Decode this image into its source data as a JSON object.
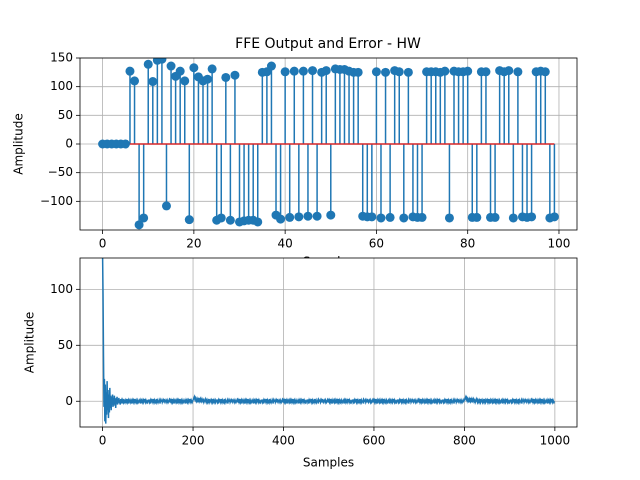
{
  "chart_data": [
    {
      "type": "stem",
      "title": "FFE Output and Error - HW",
      "xlabel": "Samples",
      "ylabel": "Amplitude",
      "color": "#1f77b4",
      "baseline_color": "#d62728",
      "grid": true,
      "xlim": [
        -4.95,
        103.95
      ],
      "ylim": [
        -150,
        150
      ],
      "xticks": [
        0,
        20,
        40,
        60,
        80,
        100
      ],
      "yticks": [
        {
          "value": -100,
          "label": "−100"
        },
        {
          "value": -50,
          "label": "−50"
        },
        0,
        50,
        100,
        150
      ],
      "values": [
        0,
        0,
        0,
        0,
        0,
        0,
        127,
        110,
        -141,
        -129,
        139,
        109,
        146,
        148,
        -108,
        136,
        118,
        127,
        110,
        -132,
        133,
        117,
        110,
        113,
        131,
        -133,
        -129,
        116,
        -133,
        120,
        -136,
        -134,
        -133,
        -133,
        -136,
        125,
        126,
        136,
        -124,
        -131,
        126,
        -128,
        127,
        -127,
        127,
        -126,
        128,
        -126,
        125,
        128,
        -124,
        131,
        130,
        130,
        127,
        125,
        125,
        -126,
        -127,
        -127,
        126,
        -129,
        125,
        -128,
        128,
        126,
        -129,
        125,
        -127,
        -128,
        -128,
        126,
        126,
        126,
        125,
        127,
        -129,
        127,
        126,
        126,
        127,
        -128,
        -128,
        126,
        126,
        -128,
        -128,
        128,
        126,
        128,
        -129,
        126,
        -127,
        -128,
        -127,
        126,
        127,
        126,
        -129,
        -127
      ]
    },
    {
      "type": "line",
      "xlabel": "Samples",
      "ylabel": "Amplitude",
      "color": "#1f77b4",
      "grid": true,
      "xlim": [
        -49.95,
        1048.95
      ],
      "ylim": [
        -23,
        128
      ],
      "xticks": [
        0,
        200,
        400,
        600,
        800,
        1000
      ],
      "yticks": [
        0,
        50,
        100
      ],
      "values": [
        130,
        95,
        40,
        -5,
        20,
        -18,
        15,
        -20,
        8,
        -12,
        18,
        -8,
        10,
        -15,
        6,
        -10,
        12,
        -6,
        5,
        -8,
        4,
        -3,
        6,
        -5,
        3,
        -4,
        5,
        -2,
        2,
        -6,
        3,
        -1,
        4,
        -3,
        2,
        -1,
        3,
        -2,
        1,
        -3,
        2,
        0,
        1,
        -2,
        1,
        0,
        -1,
        2,
        0,
        -1,
        0,
        1,
        -1,
        0,
        2,
        -1,
        0,
        1,
        -2,
        0,
        1,
        0,
        -1,
        1,
        0,
        -2,
        1,
        0,
        1,
        -1,
        0,
        2,
        -1,
        0,
        1,
        -1,
        0,
        -1,
        1,
        0,
        -1,
        0,
        1,
        0,
        -2,
        1,
        0,
        1,
        -1,
        0,
        1,
        -1,
        0,
        2,
        0,
        -1,
        1,
        0,
        -1,
        0,
        -1,
        0,
        1,
        1,
        -1,
        0,
        -2,
        1,
        0,
        1,
        0,
        -1,
        2,
        0,
        -1,
        1,
        0,
        -1,
        0,
        2,
        -1,
        0,
        1,
        -1,
        0,
        0,
        1,
        -2,
        1,
        0,
        0,
        1,
        -1,
        0,
        1,
        -1,
        2,
        0,
        -1,
        0,
        1,
        0,
        -1,
        1,
        0,
        -1,
        0,
        1,
        -1,
        1,
        0,
        1,
        -1,
        0,
        2,
        -1,
        0,
        1,
        -2,
        0,
        1,
        0,
        -1,
        1,
        0,
        -2,
        1,
        0,
        1,
        -1,
        0,
        2,
        -1,
        0,
        1,
        -1,
        0,
        -1,
        1,
        0,
        -1,
        0,
        1,
        0,
        -2,
        1,
        0,
        1,
        -1,
        0,
        1,
        -1,
        0,
        2,
        0,
        -1,
        1,
        0,
        -1,
        0,
        1,
        2,
        3,
        4,
        2,
        3,
        1,
        2,
        0,
        1,
        -1,
        2,
        1,
        3,
        0,
        1,
        2,
        -1,
        1,
        0,
        2,
        1,
        0,
        1,
        -1,
        0,
        1,
        2,
        0,
        -1,
        1,
        0,
        -1,
        1,
        0,
        2,
        -1,
        0,
        1,
        0,
        -1,
        1,
        0,
        -1,
        2,
        0,
        1,
        -1,
        0,
        1,
        -1,
        0,
        1,
        1,
        -1,
        0,
        -2,
        1,
        0,
        1,
        0,
        -1,
        2,
        0,
        -1,
        1,
        0,
        -1,
        0,
        2,
        -1,
        0,
        1,
        -1,
        0,
        0,
        1,
        -2,
        1,
        0,
        0,
        1,
        -1,
        0,
        1,
        -1,
        2,
        0,
        -1,
        0,
        1,
        0,
        -1,
        1,
        0,
        -1,
        0,
        1,
        -1,
        1,
        0,
        1,
        -1,
        0,
        2,
        -1,
        0,
        1,
        -2,
        0,
        1,
        0,
        -1,
        1,
        0,
        -2,
        1,
        0,
        1,
        -1,
        0,
        2,
        -1,
        0,
        1,
        -1,
        0,
        -1,
        1,
        0,
        -1,
        0,
        1,
        0,
        -2,
        1,
        0,
        1,
        -1,
        0,
        1,
        -1,
        0,
        2,
        0,
        -1,
        1,
        0,
        -1,
        0,
        -1,
        0,
        1,
        1,
        -1,
        0,
        -2,
        1,
        0,
        1,
        0,
        -1,
        2,
        0,
        -1,
        1,
        0,
        -1,
        0,
        2,
        -1,
        0,
        1,
        -1,
        0,
        0,
        1,
        -2,
        1,
        0,
        0,
        1,
        -1,
        0,
        1,
        -1,
        2,
        0,
        -1,
        0,
        1,
        0,
        -1,
        1,
        0,
        -1,
        0,
        1,
        -1,
        1,
        0,
        1,
        -1,
        0,
        2,
        -1,
        0,
        1,
        -2,
        0,
        1,
        0,
        -1,
        1,
        0,
        -2,
        1,
        0,
        1,
        -1,
        0,
        2,
        -1,
        0,
        1,
        -1,
        0,
        -1,
        1,
        0,
        -1,
        0,
        1,
        0,
        -2,
        1,
        0,
        1,
        -1,
        0,
        1,
        -1,
        0,
        2,
        0,
        -1,
        1,
        0,
        -1,
        0,
        -1,
        0,
        1,
        1,
        -1,
        0,
        -2,
        1,
        0,
        1,
        0,
        -1,
        2,
        0,
        -1,
        1,
        0,
        -1,
        0,
        2,
        -1,
        0,
        1,
        -1,
        0,
        0,
        1,
        -2,
        1,
        0,
        0,
        1,
        -1,
        0,
        1,
        -1,
        2,
        0,
        -1,
        0,
        1,
        0,
        -1,
        1,
        0,
        -1,
        0,
        1,
        -1,
        1,
        0,
        1,
        -1,
        0,
        2,
        -1,
        0,
        1,
        -2,
        0,
        1,
        0,
        -1,
        1,
        0,
        -2,
        1,
        0,
        1,
        -1,
        0,
        2,
        -1,
        0,
        1,
        -1,
        0,
        -1,
        1,
        0,
        -1,
        0,
        1,
        0,
        -2,
        1,
        0,
        1,
        -1,
        0,
        1,
        -1,
        0,
        2,
        0,
        -1,
        1,
        0,
        -1,
        0,
        -1,
        0,
        1,
        1,
        -1,
        0,
        -2,
        1,
        0,
        1,
        0,
        -1,
        2,
        0,
        -1,
        1,
        0,
        -1,
        0,
        2,
        -1,
        0,
        1,
        -1,
        0,
        0,
        1,
        -2,
        1,
        0,
        0,
        1,
        -1,
        0,
        1,
        -1,
        2,
        0,
        -1,
        0,
        1,
        0,
        -1,
        1,
        0,
        -1,
        0,
        1,
        -1,
        1,
        0,
        1,
        -1,
        0,
        2,
        -1,
        0,
        1,
        -2,
        0,
        1,
        0,
        -1,
        1,
        0,
        -2,
        1,
        0,
        1,
        -1,
        0,
        2,
        -1,
        0,
        1,
        -1,
        0,
        -1,
        1,
        0,
        -1,
        0,
        1,
        0,
        -2,
        1,
        0,
        1,
        -1,
        0,
        1,
        -1,
        0,
        2,
        0,
        -1,
        1,
        0,
        -1,
        0,
        -1,
        0,
        1,
        1,
        -1,
        0,
        -2,
        1,
        0,
        1,
        0,
        -1,
        2,
        0,
        -1,
        1,
        0,
        -1,
        0,
        2,
        -1,
        0,
        1,
        -1,
        0,
        0,
        1,
        -2,
        1,
        0,
        0,
        1,
        -1,
        0,
        1,
        -1,
        2,
        0,
        -1,
        0,
        1,
        0,
        -1,
        1,
        0,
        -1,
        0,
        1,
        -1,
        1,
        0,
        1,
        -1,
        0,
        2,
        -1,
        0,
        1,
        -2,
        0,
        1,
        0,
        -1,
        1,
        0,
        -2,
        1,
        0,
        1,
        -1,
        0,
        2,
        -1,
        0,
        1,
        -1,
        0,
        -1,
        1,
        0,
        -1,
        0,
        1,
        0,
        -2,
        1,
        0,
        1,
        -1,
        0,
        1,
        -1,
        0,
        2,
        0,
        -1,
        1,
        0,
        -1,
        0,
        -1,
        0,
        1,
        1,
        -1,
        0,
        -2,
        1,
        0,
        1,
        0,
        -1,
        2,
        0,
        -1,
        1,
        0,
        -1,
        0,
        2,
        -1,
        0,
        1,
        -1,
        0,
        0,
        1,
        -2,
        1,
        0,
        0,
        1,
        -1,
        0,
        1,
        -1,
        2,
        0,
        -1,
        0,
        1,
        0,
        -1,
        1,
        0,
        -1,
        0,
        1,
        -1,
        1,
        1,
        2,
        3,
        4,
        2,
        3,
        1,
        2,
        0,
        1,
        -1,
        2,
        1,
        3,
        0,
        1,
        2,
        -1,
        1,
        0,
        2,
        1,
        0,
        1,
        -1,
        0,
        1,
        2,
        0,
        -1,
        1,
        0,
        -1,
        1,
        0,
        2,
        -1,
        0,
        1,
        0,
        -1,
        1,
        0,
        -1,
        2,
        0,
        1,
        -1,
        0,
        1,
        0,
        1,
        -1,
        0,
        2,
        -1,
        0,
        1,
        -2,
        0,
        1,
        0,
        -1,
        1,
        0,
        -2,
        1,
        0,
        1,
        -1,
        0,
        2,
        -1,
        0,
        1,
        -1,
        0,
        -1,
        1,
        0,
        -1,
        0,
        1,
        0,
        -2,
        1,
        0,
        1,
        -1,
        0,
        1,
        -1,
        0,
        2,
        0,
        -1,
        1,
        0,
        -1,
        0,
        -1,
        0,
        1,
        1,
        -1,
        0,
        -2,
        1,
        0,
        1,
        0,
        -1,
        2,
        0,
        -1,
        1,
        0,
        -1,
        0,
        2,
        -1,
        0,
        1,
        -1,
        0,
        0,
        1,
        -2,
        1,
        0,
        0,
        1,
        -1,
        0,
        1,
        -1,
        2,
        0,
        -1,
        0,
        1,
        0,
        -1,
        1,
        0,
        -1,
        0,
        1,
        -1,
        1,
        0,
        1,
        -1,
        0,
        2,
        -1,
        0,
        1,
        -2,
        0,
        1,
        0,
        -1,
        1,
        0,
        -2,
        1,
        0,
        1,
        -1,
        0,
        2,
        -1,
        0,
        1,
        -1,
        0,
        -1,
        1,
        0,
        -1,
        0,
        1,
        0,
        -2,
        1,
        0,
        1,
        -1,
        0,
        1,
        -1,
        0,
        2,
        0,
        -1,
        1,
        0,
        -1,
        0
      ]
    }
  ]
}
